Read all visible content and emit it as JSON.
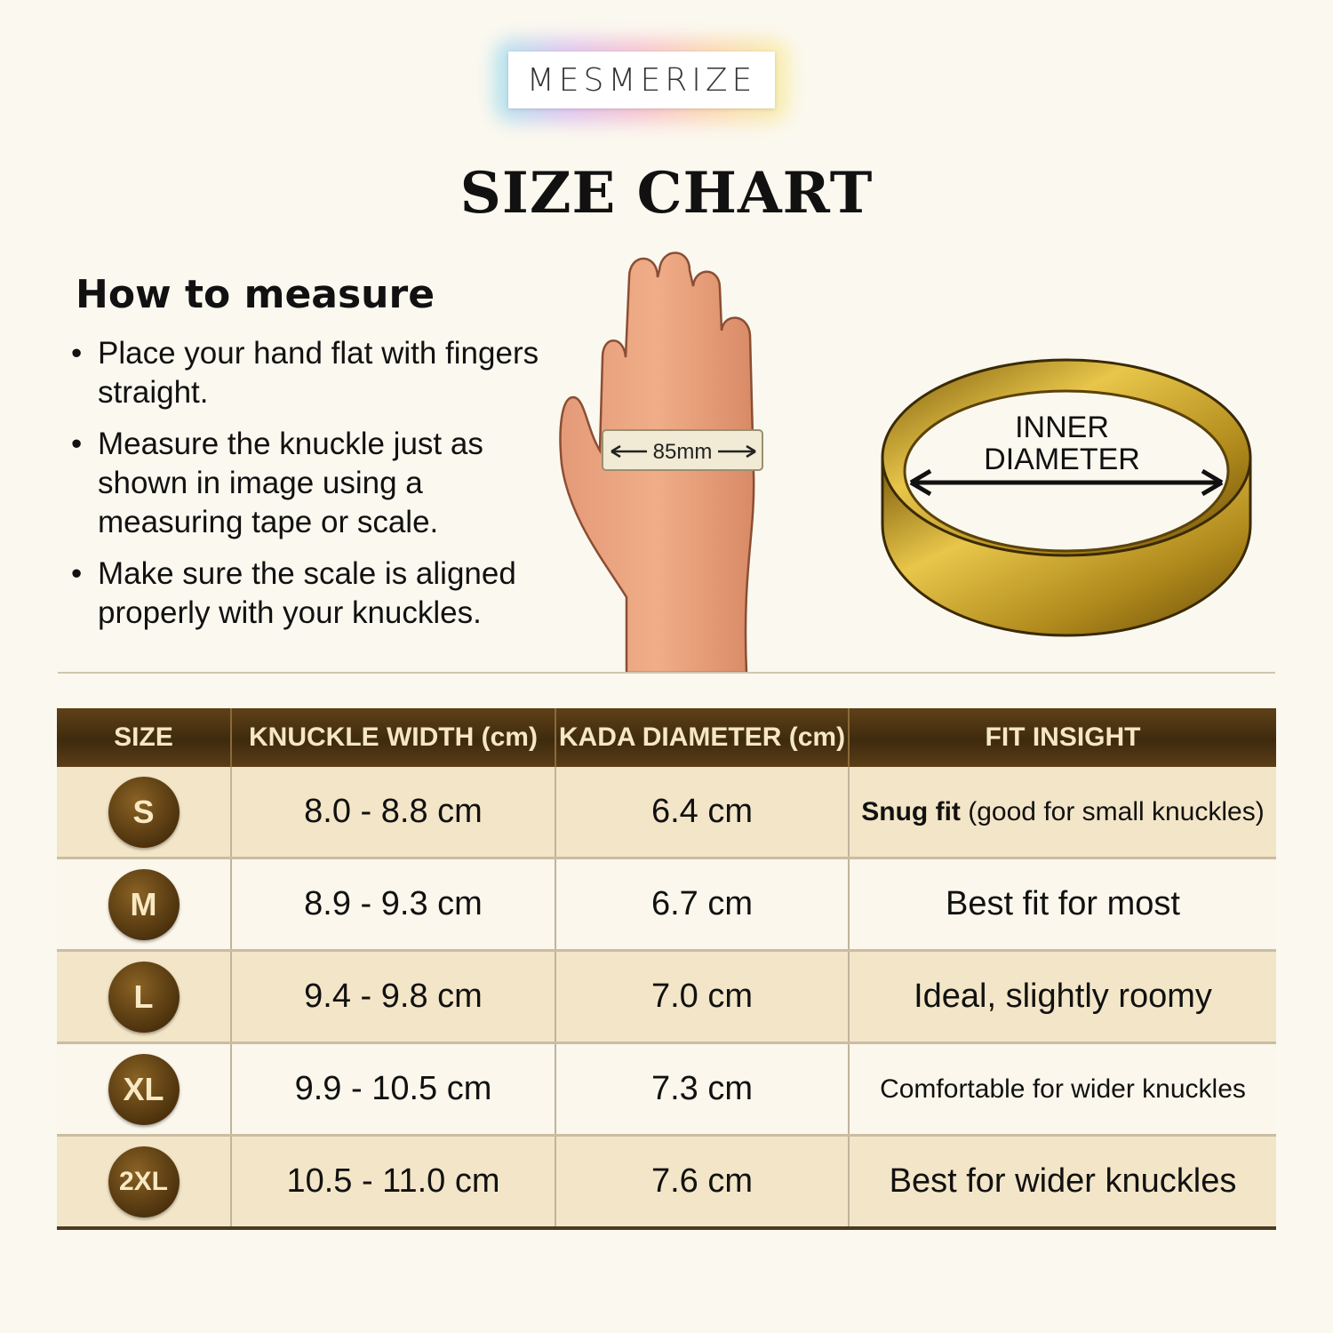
{
  "brand": "MESMERIZE",
  "title": "SIZE CHART",
  "how_to_measure": {
    "heading": "How to measure",
    "steps": [
      "Place your hand flat with fingers straight.",
      "Measure the knuckle just as shown in image using a measuring tape or scale.",
      "Make sure the scale is aligned properly with your knuckles."
    ]
  },
  "hand_illustration": {
    "tape_label": "85mm"
  },
  "ring_illustration": {
    "label_line1": "INNER",
    "label_line2": "DIAMETER"
  },
  "colors": {
    "header": "#4a300f",
    "row_tan": "#f3e5c7",
    "row_light": "#fbf7ec",
    "gold": "#c9a227"
  },
  "table": {
    "headers": [
      "SIZE",
      "KNUCKLE WIDTH (cm)",
      "KADA DIAMETER (cm)",
      "FIT INSIGHT"
    ],
    "rows": [
      {
        "size": "S",
        "knuckle": "8.0 - 8.8 cm",
        "diameter": "6.4 cm",
        "fit_bold": "Snug fit",
        "fit": "(good for small knuckles)"
      },
      {
        "size": "M",
        "knuckle": "8.9 - 9.3 cm",
        "diameter": "6.7 cm",
        "fit_bold": "",
        "fit": "Best fit for most"
      },
      {
        "size": "L",
        "knuckle": "9.4 - 9.8 cm",
        "diameter": "7.0 cm",
        "fit_bold": "",
        "fit": "Ideal, slightly roomy"
      },
      {
        "size": "XL",
        "knuckle": "9.9 - 10.5 cm",
        "diameter": "7.3 cm",
        "fit_bold": "",
        "fit": "Comfortable for wider knuckles"
      },
      {
        "size": "2XL",
        "knuckle": "10.5 - 11.0 cm",
        "diameter": "7.6 cm",
        "fit_bold": "",
        "fit": "Best for wider knuckles"
      }
    ]
  }
}
